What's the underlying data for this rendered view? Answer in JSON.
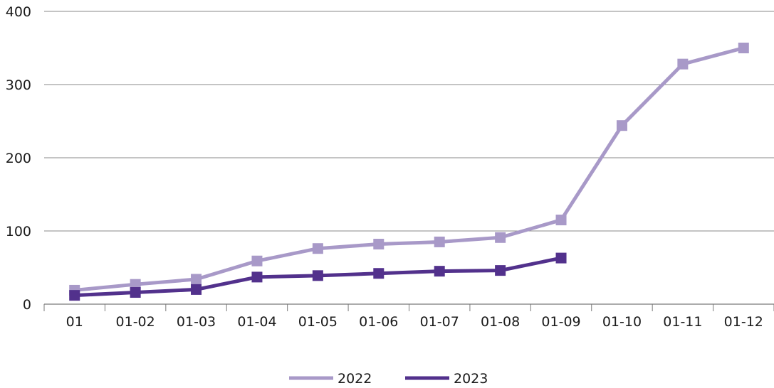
{
  "chart_data": {
    "type": "line",
    "categories": [
      "01",
      "01-02",
      "01-03",
      "01-04",
      "01-05",
      "01-06",
      "01-07",
      "01-08",
      "01-09",
      "01-10",
      "01-11",
      "01-12"
    ],
    "series": [
      {
        "name": "2022",
        "color": "#a899c8",
        "marker": "square",
        "values": [
          19,
          27,
          34,
          59,
          76,
          82,
          85,
          91,
          115,
          244,
          328,
          350
        ]
      },
      {
        "name": "2023",
        "color": "#52318c",
        "marker": "square",
        "values": [
          12,
          16,
          20,
          37,
          39,
          42,
          45,
          46,
          63,
          null,
          null,
          null
        ]
      }
    ],
    "ylim": [
      0,
      400
    ],
    "yticks": [
      0,
      100,
      200,
      300,
      400
    ],
    "grid": true,
    "legend_position": "bottom-center"
  }
}
